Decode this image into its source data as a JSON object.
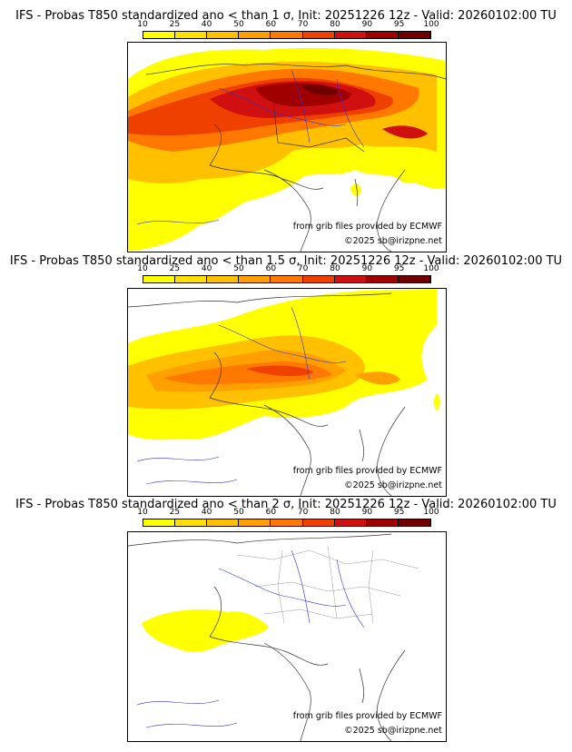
{
  "colorbar": {
    "ticks": [
      "10",
      "25",
      "40",
      "50",
      "60",
      "70",
      "80",
      "90",
      "95",
      "100"
    ],
    "colors": [
      "#ffff00",
      "#ffe000",
      "#ffc000",
      "#ffa000",
      "#ff7800",
      "#f04000",
      "#d01010",
      "#a00000",
      "#700000"
    ]
  },
  "panels": [
    {
      "title": "IFS - Probas T850  standardized ano < than 1 σ, Init: 20251226 12z - Valid: 20260102:00 TU",
      "credit_source": "from grib files provided by ECMWF",
      "credit_copyright": "©2025 sb@irizpne.net",
      "coverage": "high"
    },
    {
      "title": "IFS - Probas T850  standardized ano < than 1.5 σ, Init: 20251226 12z - Valid: 20260102:00 TU",
      "credit_source": "from grib files provided by ECMWF",
      "credit_copyright": "©2025 sb@irizpne.net",
      "coverage": "medium"
    },
    {
      "title": "IFS - Probas T850  standardized ano < than 2 σ, Init: 20251226 12z - Valid: 20260102:00 TU",
      "credit_source": "from grib files provided by ECMWF",
      "credit_copyright": "©2025 sb@irizpne.net",
      "coverage": "low"
    }
  ]
}
